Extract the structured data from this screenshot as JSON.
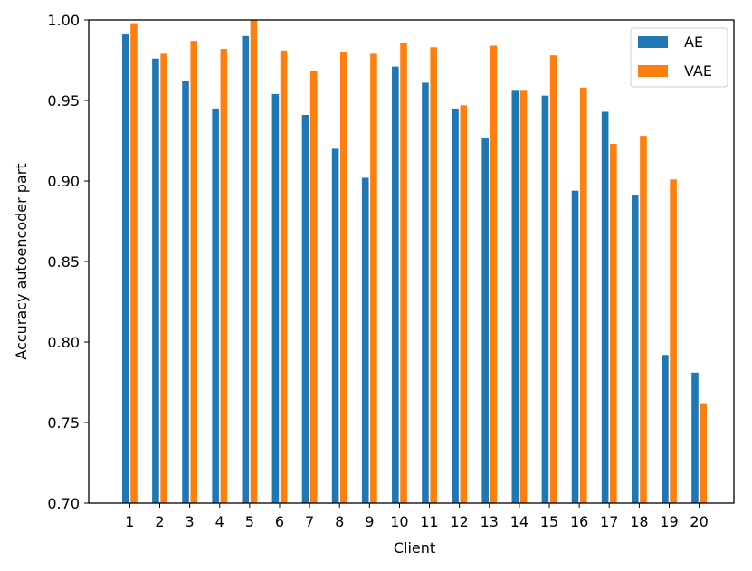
{
  "chart_data": {
    "type": "bar",
    "title": "",
    "xlabel": "Client",
    "ylabel": "Accuracy autoencoder part",
    "categories": [
      "1",
      "2",
      "3",
      "4",
      "5",
      "6",
      "7",
      "8",
      "9",
      "10",
      "11",
      "12",
      "13",
      "14",
      "15",
      "16",
      "17",
      "18",
      "19",
      "20"
    ],
    "series": [
      {
        "name": "AE",
        "color": "#1f77b4",
        "values": [
          0.991,
          0.976,
          0.962,
          0.945,
          0.99,
          0.954,
          0.941,
          0.92,
          0.902,
          0.971,
          0.961,
          0.945,
          0.927,
          0.956,
          0.953,
          0.894,
          0.943,
          0.891,
          0.792,
          0.781
        ]
      },
      {
        "name": "VAE",
        "color": "#ff7f0e",
        "values": [
          0.998,
          0.979,
          0.987,
          0.982,
          1.0,
          0.981,
          0.968,
          0.98,
          0.979,
          0.986,
          0.983,
          0.947,
          0.984,
          0.956,
          0.978,
          0.958,
          0.923,
          0.928,
          0.901,
          0.762
        ]
      }
    ],
    "ylim": [
      0.7,
      1.0
    ],
    "yticks": [
      "0.70",
      "0.75",
      "0.80",
      "0.85",
      "0.90",
      "0.95",
      "1.00"
    ],
    "grid": false,
    "legend_position": "top-right"
  }
}
